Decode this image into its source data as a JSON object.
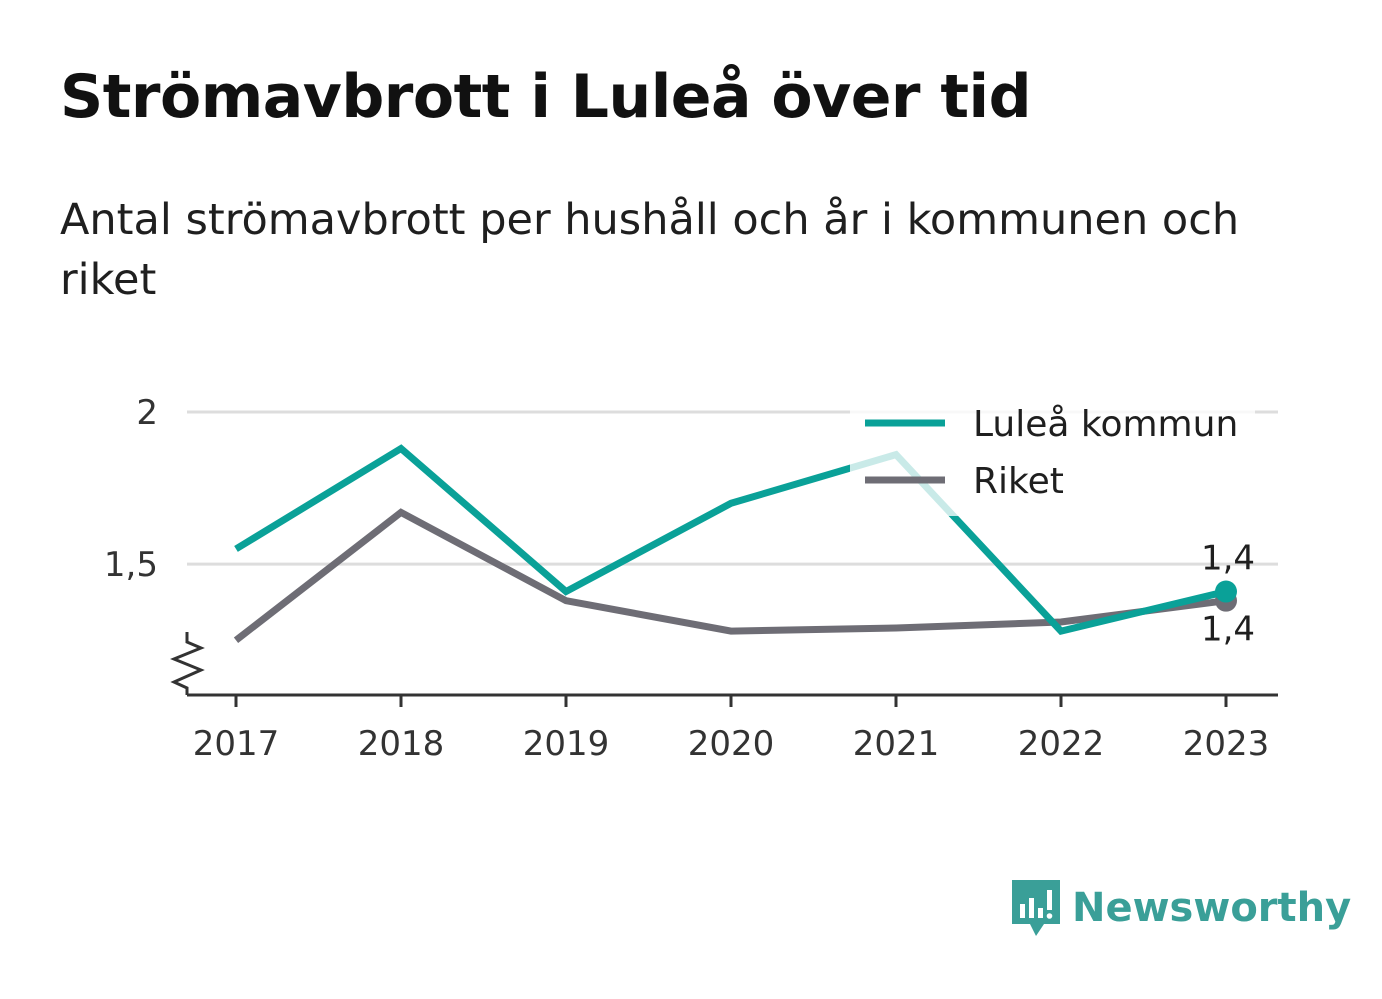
{
  "title": "Strömavbrott i Luleå över tid",
  "subtitle": "Antal strömavbrott per hushåll och år i kommunen och riket",
  "brand": {
    "name": "Newsworthy",
    "icon": "bar-chart-speech-bubble-icon"
  },
  "colors": {
    "lulea": "#0aa198",
    "riket": "#6e6d75",
    "grid": "#dddddd",
    "axis": "#333333"
  },
  "chart_data": {
    "type": "line",
    "title": "Strömavbrott i Luleå över tid",
    "subtitle": "Antal strömavbrott per hushåll och år i kommunen och riket",
    "categories": [
      "2017",
      "2018",
      "2019",
      "2020",
      "2021",
      "2022",
      "2023"
    ],
    "y_ticks": [
      1.5,
      2
    ],
    "y_tick_labels": [
      "1,5",
      "2"
    ],
    "ylim": [
      1.07,
      2.0
    ],
    "y_axis_break": true,
    "grid": true,
    "legend_position": "top-right",
    "series": [
      {
        "name": "Luleå kommun",
        "color": "#0aa198",
        "values": [
          1.55,
          1.88,
          1.41,
          1.7,
          1.86,
          1.28,
          1.41
        ],
        "end_label": "1,4"
      },
      {
        "name": "Riket",
        "color": "#6e6d75",
        "values": [
          1.25,
          1.67,
          1.38,
          1.28,
          1.29,
          1.31,
          1.38
        ],
        "end_label": "1,4"
      }
    ]
  }
}
